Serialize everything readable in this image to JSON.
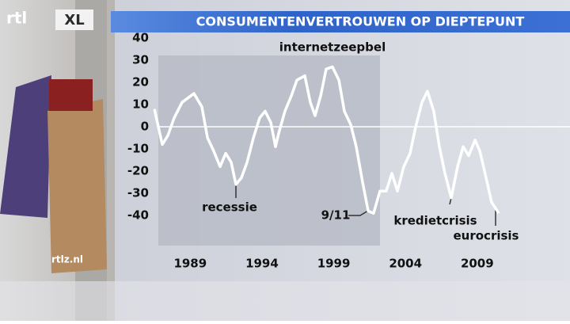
{
  "logo": "rtl",
  "logo_badge": "XL",
  "watermark": "rtlz.nl",
  "chart_data": {
    "type": "line",
    "title": "CONSUMENTENVERTROUWEN OP DIEPTEPUNT",
    "x": [
      1986.5,
      1987.05,
      1987.44,
      1987.88,
      1988.43,
      1989.26,
      1989.81,
      1990.2,
      1990.64,
      1991.08,
      1991.47,
      1991.85,
      1992.18,
      1992.57,
      1992.96,
      1993.4,
      1993.84,
      1994.22,
      1994.61,
      1994.94,
      1995.16,
      1995.6,
      1996.05,
      1996.43,
      1996.98,
      1997.37,
      1997.7,
      1998.09,
      1998.47,
      1998.91,
      1999.36,
      1999.74,
      2000.18,
      2000.57,
      2001.01,
      2001.4,
      2001.78,
      2002.22,
      2002.66,
      2003.05,
      2003.44,
      2003.88,
      2004.32,
      2004.71,
      2005.15,
      2005.53,
      2005.97,
      2006.36,
      2006.75,
      2007.19,
      2007.63,
      2008.02,
      2008.41,
      2008.85,
      2009.18,
      2009.51,
      2010.0,
      2010.2,
      2010.5
    ],
    "values": [
      8,
      -8,
      -4,
      4,
      11,
      15,
      9,
      -5,
      -11,
      -18,
      -12,
      -16,
      -26,
      -23,
      -16,
      -5,
      4,
      7,
      2,
      -9,
      -3,
      7,
      14,
      21,
      23,
      11,
      5,
      14,
      26,
      27,
      21,
      7,
      1,
      -9,
      -25,
      -38,
      -39,
      -29,
      -29,
      -21,
      -29,
      -18,
      -12,
      0,
      11,
      16,
      7,
      -9,
      -21,
      -32,
      -18,
      -9,
      -13,
      -6,
      -11,
      -20,
      -34,
      -36,
      -39
    ],
    "color": "#ffffff",
    "xlim": [
      1986.5,
      2010.5
    ],
    "xticks": [
      1989,
      1994,
      1999,
      2004,
      2009
    ],
    "ylim": [
      -40,
      40
    ],
    "yticks": [
      40,
      30,
      20,
      10,
      0,
      -10,
      -20,
      -30,
      -40
    ],
    "annotations": [
      "internetzeepbel",
      "recessie",
      "9/11",
      "kredietcrisis",
      "eurocrisis"
    ]
  }
}
